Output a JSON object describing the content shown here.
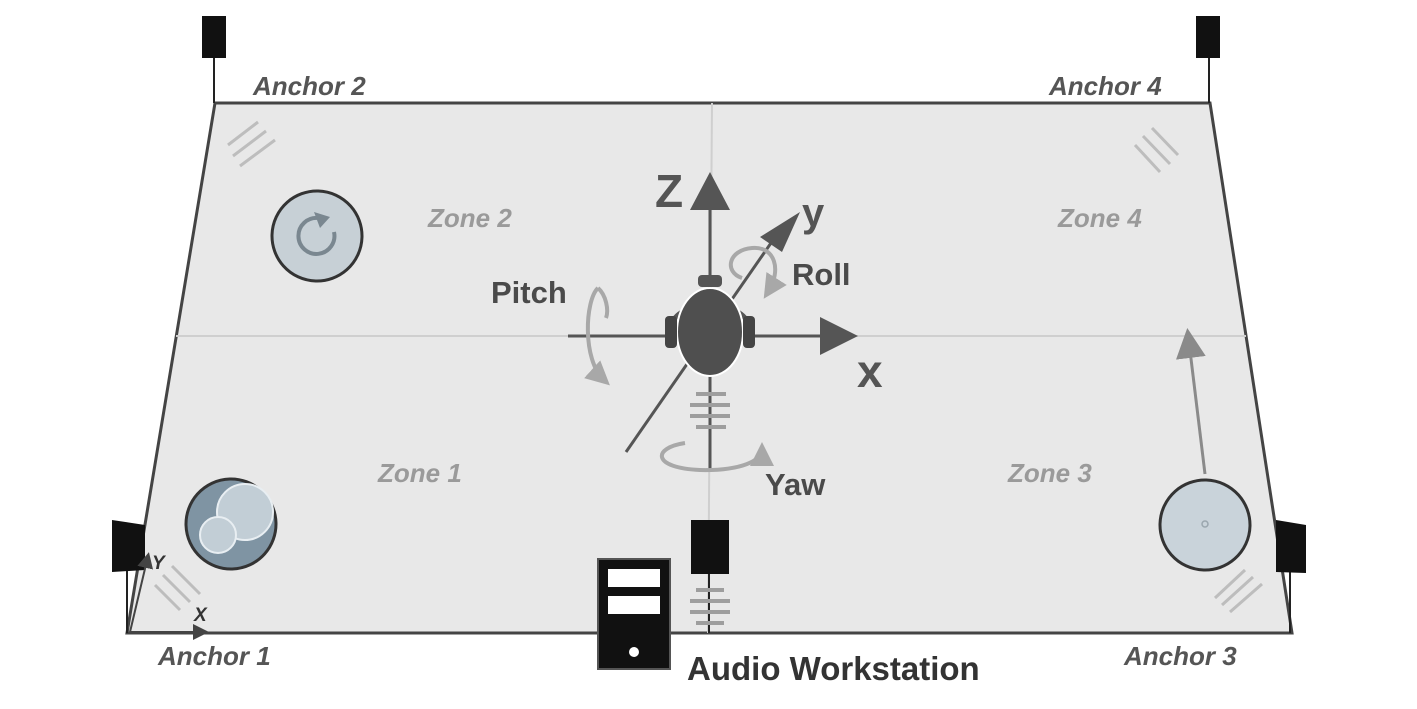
{
  "anchors": [
    "Anchor 1",
    "Anchor 2",
    "Anchor 3",
    "Anchor 4"
  ],
  "zones": [
    "Zone 1",
    "Zone 2",
    "Zone 3",
    "Zone 4"
  ],
  "rotations": {
    "pitch": "Pitch",
    "roll": "Roll",
    "yaw": "Yaw"
  },
  "axes": {
    "x": "x",
    "y": "y",
    "z": "z"
  },
  "corner_axes": {
    "x": "X",
    "y": "Y"
  },
  "workstation_label": "Audio Workstation",
  "colors": {
    "floor": "#e8e8e8",
    "outline": "#444444",
    "speaker": "#111111",
    "axis": "#555555",
    "rotation_arrow": "#a8a8a8",
    "disc": "#b9c6cf"
  }
}
